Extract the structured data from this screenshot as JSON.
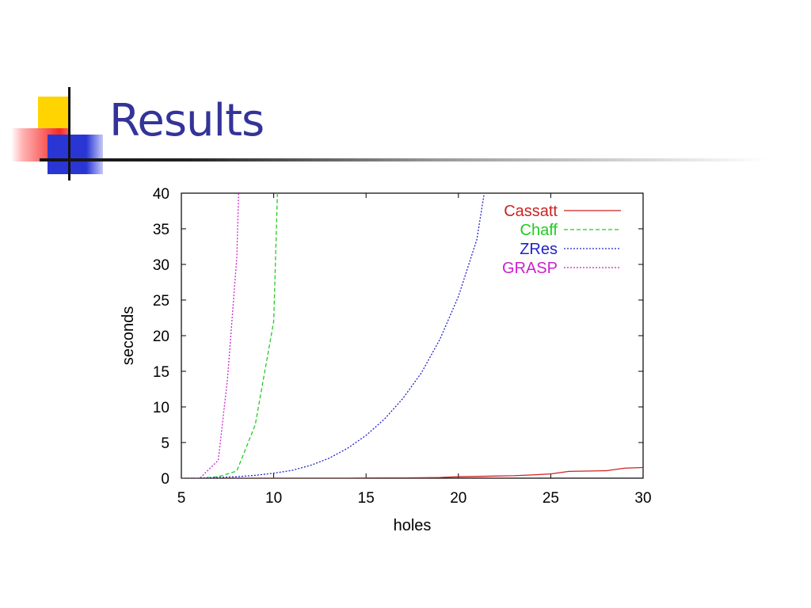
{
  "slide": {
    "title": "Results"
  },
  "chart_data": {
    "type": "line",
    "title": "",
    "xlabel": "holes",
    "ylabel": "seconds",
    "xlim": [
      5,
      30
    ],
    "ylim": [
      0,
      40
    ],
    "x_ticks": [
      5,
      10,
      15,
      20,
      25,
      30
    ],
    "y_ticks": [
      0,
      5,
      10,
      15,
      20,
      25,
      30,
      35,
      40
    ],
    "grid": false,
    "legend_position": "top-right",
    "series": [
      {
        "name": "Cassatt",
        "color": "#cc2222",
        "dash": "solid",
        "points": [
          [
            5,
            0
          ],
          [
            6,
            0
          ],
          [
            7,
            0
          ],
          [
            8,
            0
          ],
          [
            9,
            0
          ],
          [
            10,
            0
          ],
          [
            11,
            0
          ],
          [
            12,
            0
          ],
          [
            13,
            0
          ],
          [
            14,
            0
          ],
          [
            15,
            0.02
          ],
          [
            16,
            0.03
          ],
          [
            17,
            0.05
          ],
          [
            18,
            0.07
          ],
          [
            19,
            0.1
          ],
          [
            20,
            0.2
          ],
          [
            21,
            0.25
          ],
          [
            22,
            0.3
          ],
          [
            23,
            0.35
          ],
          [
            24,
            0.45
          ],
          [
            25,
            0.6
          ],
          [
            26,
            0.95
          ],
          [
            27,
            1.0
          ],
          [
            28,
            1.05
          ],
          [
            29,
            1.4
          ],
          [
            30,
            1.5
          ]
        ]
      },
      {
        "name": "Chaff",
        "color": "#22cc22",
        "dash": "dashed",
        "points": [
          [
            5,
            0
          ],
          [
            6,
            0
          ],
          [
            7,
            0.2
          ],
          [
            8,
            1.0
          ],
          [
            9,
            7.5
          ],
          [
            10,
            22
          ],
          [
            10.2,
            40
          ]
        ]
      },
      {
        "name": "ZRes",
        "color": "#2222cc",
        "dash": "dotted",
        "points": [
          [
            5,
            0
          ],
          [
            6,
            0
          ],
          [
            7,
            0.1
          ],
          [
            8,
            0.2
          ],
          [
            9,
            0.4
          ],
          [
            10,
            0.7
          ],
          [
            11,
            1.1
          ],
          [
            12,
            1.8
          ],
          [
            13,
            2.8
          ],
          [
            14,
            4.2
          ],
          [
            15,
            6.0
          ],
          [
            16,
            8.3
          ],
          [
            17,
            11.2
          ],
          [
            18,
            14.8
          ],
          [
            19,
            19.5
          ],
          [
            20,
            25.5
          ],
          [
            21,
            33.5
          ],
          [
            21.4,
            40
          ]
        ]
      },
      {
        "name": "GRASP",
        "color": "#cc22cc",
        "dash": "dotted",
        "points": [
          [
            5,
            0
          ],
          [
            6,
            0
          ],
          [
            7,
            2.5
          ],
          [
            7.5,
            14
          ],
          [
            8,
            31
          ],
          [
            8.1,
            40
          ]
        ]
      }
    ]
  }
}
